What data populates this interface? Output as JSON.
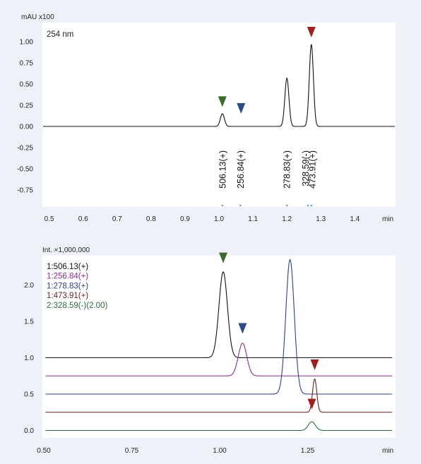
{
  "colors": {
    "background": "#eef2f8",
    "plot_bg": "#ffffff",
    "black": "#111111",
    "purple": "#8b2c8b",
    "blue": "#2d3e8f",
    "maroon": "#6b1f1f",
    "green": "#2e6b3a",
    "marker_green": "#3f6b2a",
    "marker_blue": "#2d4a8a",
    "marker_red": "#a02020",
    "tick_mark": "#4a90d9"
  },
  "chart_data": [
    {
      "type": "line",
      "ylabel": "mAU x100",
      "annotation": "254 nm",
      "xunit": "min",
      "xlim": [
        0.48,
        1.52
      ],
      "ylim": [
        -0.95,
        1.25
      ],
      "xticks": [
        "0.5",
        "0.6",
        "0.7",
        "0.8",
        "0.9",
        "1.0",
        "1.1",
        "1.2",
        "1.3",
        "1.4"
      ],
      "xtick_values": [
        0.5,
        0.6,
        0.7,
        0.8,
        0.9,
        1.0,
        1.1,
        1.2,
        1.3,
        1.4
      ],
      "yticks": [
        "1.00",
        "0.75",
        "0.50",
        "0.25",
        "0.00",
        "-0.25",
        "-0.50",
        "-0.75"
      ],
      "ytick_values": [
        1.0,
        0.75,
        0.5,
        0.25,
        0.0,
        -0.25,
        -0.5,
        -0.75
      ],
      "series": [
        {
          "color": "#111111",
          "baseline": 0.0,
          "peaks": [
            {
              "x": 1.01,
              "height": 0.15,
              "width": 0.006
            },
            {
              "x": 1.2,
              "height": 0.57,
              "width": 0.006
            },
            {
              "x": 1.272,
              "height": 0.97,
              "width": 0.006
            }
          ]
        }
      ],
      "markers": [
        {
          "x": 1.01,
          "y": 0.23,
          "color": "#3f6b2a"
        },
        {
          "x": 1.065,
          "y": 0.15,
          "color": "#2d4a8a"
        },
        {
          "x": 1.272,
          "y": 1.05,
          "color": "#a02020"
        }
      ],
      "mass_labels": [
        {
          "x": 1.01,
          "text": "506.13(+)"
        },
        {
          "x": 1.063,
          "text": "256.84(+)"
        },
        {
          "x": 1.2,
          "text": "278.83(+)"
        },
        {
          "x": 1.255,
          "text": "328.59(-)"
        },
        {
          "x": 1.275,
          "text": "473.91(+)"
        }
      ],
      "axis_tick_marks": [
        1.01,
        1.063,
        1.2,
        1.262,
        1.272
      ]
    },
    {
      "type": "line",
      "ylabel": "Int. ×1,000,000",
      "xunit": "min",
      "xlim": [
        0.5,
        1.5
      ],
      "ylim": [
        -0.2,
        2.5
      ],
      "xticks": [
        "0.50",
        "0.75",
        "1.00",
        "1.25"
      ],
      "xtick_values": [
        0.5,
        0.75,
        1.0,
        1.25
      ],
      "yticks": [
        "2.0",
        "1.5",
        "1.0",
        "0.5",
        "0.0"
      ],
      "ytick_values": [
        2.0,
        1.5,
        1.0,
        0.5,
        0.0
      ],
      "series": [
        {
          "name": "1:506.13(+)",
          "color": "#111111",
          "baseline": 1.0,
          "peaks": [
            {
              "x": 1.01,
              "height": 1.18,
              "width": 0.012
            }
          ]
        },
        {
          "name": "1:256.84(+)",
          "color": "#8b2c8b",
          "baseline": 0.75,
          "peaks": [
            {
              "x": 1.065,
              "height": 0.45,
              "width": 0.012
            }
          ]
        },
        {
          "name": "1:278.83(+)",
          "color": "#2d3e8f",
          "baseline": 0.5,
          "peaks": [
            {
              "x": 1.2,
              "height": 1.85,
              "width": 0.012
            }
          ]
        },
        {
          "name": "1:473.91(+)",
          "color": "#6b1f1f",
          "baseline": 0.25,
          "peaks": [
            {
              "x": 1.27,
              "height": 0.46,
              "width": 0.006
            }
          ]
        },
        {
          "name": "2:328.59(-)(2.00)",
          "color": "#2e6b3a",
          "baseline": 0.0,
          "peaks": [
            {
              "x": 1.262,
              "height": 0.12,
              "width": 0.01
            }
          ]
        }
      ],
      "markers": [
        {
          "x": 1.01,
          "y": 2.3,
          "color": "#3f6b2a"
        },
        {
          "x": 1.065,
          "y": 1.33,
          "color": "#2d4a8a"
        },
        {
          "x": 1.27,
          "y": 0.83,
          "color": "#a02020"
        },
        {
          "x": 1.262,
          "y": 0.29,
          "color": "#a02020"
        }
      ]
    }
  ]
}
